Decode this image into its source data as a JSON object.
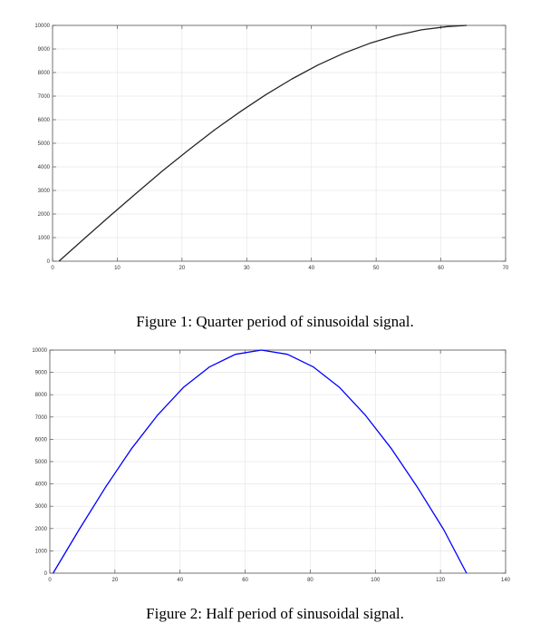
{
  "colors": {
    "grid": "#e6e6e6",
    "axis": "#555555",
    "line1": "#262626",
    "line2": "#0000ff"
  },
  "chart_data": [
    {
      "type": "line",
      "title": "",
      "xlabel": "",
      "ylabel": "",
      "xlim": [
        0,
        70
      ],
      "ylim": [
        0,
        10000
      ],
      "xticks": [
        0,
        10,
        20,
        30,
        40,
        50,
        60,
        70
      ],
      "yticks": [
        0,
        1000,
        2000,
        3000,
        4000,
        5000,
        6000,
        7000,
        8000,
        9000,
        10000
      ],
      "xtick_labels": [
        "0",
        "10",
        "20",
        "30",
        "40",
        "50",
        "60",
        "70"
      ],
      "ytick_labels": [
        "0",
        "1000",
        "2000",
        "3000",
        "4000",
        "5000",
        "6000",
        "7000",
        "8000",
        "9000",
        "10000"
      ],
      "grid": true,
      "series": [
        {
          "color": "#262626",
          "x": [
            1,
            5,
            9,
            13,
            17,
            21,
            25,
            29,
            33,
            37,
            41,
            45,
            49,
            53,
            57,
            61,
            64
          ],
          "y": [
            0,
            980,
            1950,
            2900,
            3830,
            4710,
            5560,
            6340,
            7070,
            7730,
            8320,
            8820,
            9240,
            9570,
            9810,
            9950,
            10000
          ]
        }
      ]
    },
    {
      "type": "line",
      "title": "",
      "xlabel": "",
      "ylabel": "",
      "xlim": [
        0,
        140
      ],
      "ylim": [
        0,
        10000
      ],
      "xticks": [
        0,
        20,
        40,
        60,
        80,
        100,
        120,
        140
      ],
      "yticks": [
        0,
        1000,
        2000,
        3000,
        4000,
        5000,
        6000,
        7000,
        8000,
        9000,
        10000
      ],
      "xtick_labels": [
        "0",
        "20",
        "40",
        "60",
        "80",
        "100",
        "120",
        "140"
      ],
      "ytick_labels": [
        "0",
        "1000",
        "2000",
        "3000",
        "4000",
        "5000",
        "6000",
        "7000",
        "8000",
        "9000",
        "10000"
      ],
      "grid": true,
      "series": [
        {
          "color": "#0000ff",
          "x": [
            1,
            9,
            17,
            25,
            33,
            41,
            49,
            57,
            65,
            73,
            81,
            89,
            97,
            105,
            113,
            121,
            128
          ],
          "y": [
            0,
            1950,
            3830,
            5560,
            7070,
            8320,
            9240,
            9810,
            10000,
            9810,
            9240,
            8320,
            7070,
            5560,
            3830,
            1950,
            0
          ]
        }
      ]
    }
  ],
  "captions": {
    "fig1": "Figure 1: Quarter period of sinusoidal signal.",
    "fig2": "Figure 2: Half period of sinusoidal signal."
  }
}
